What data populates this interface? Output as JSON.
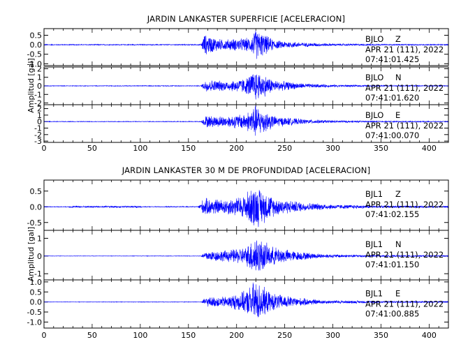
{
  "chart_data": [
    {
      "type": "seismogram",
      "title": "JARDIN LANKASTER SUPERFICIE [ACELERACION]",
      "ylabel": "Amplitud [gal]",
      "xlim": [
        0,
        420
      ],
      "x_ticks": [
        0,
        50,
        100,
        150,
        200,
        250,
        300,
        350,
        400
      ],
      "series_color": "#0000ff",
      "traces": [
        {
          "station": "BJLO",
          "component": "Z",
          "date": "APR 21 (111), 2022",
          "time": "07:41:01.425",
          "ylim": [
            -1.1,
            0.85
          ],
          "y_ticks": [
            "0.5",
            "0.0",
            "-0.5",
            "-1.0"
          ],
          "y_tick_values": [
            0.5,
            0.0,
            -0.5,
            -1.0
          ],
          "noise_amp": 0.025,
          "max_amp": 0.9,
          "envelope": [
            [
              0,
              0.025
            ],
            [
              163,
              0.03
            ],
            [
              166,
              0.6
            ],
            [
              185,
              0.3
            ],
            [
              200,
              0.35
            ],
            [
              215,
              0.4
            ],
            [
              219,
              0.9
            ],
            [
              240,
              0.25
            ],
            [
              270,
              0.12
            ],
            [
              300,
              0.07
            ],
            [
              350,
              0.04
            ],
            [
              420,
              0.03
            ]
          ]
        },
        {
          "station": "BJLO",
          "component": "N",
          "date": "APR 21 (111), 2022",
          "time": "07:41:01.620",
          "ylim": [
            -2.2,
            2.2
          ],
          "y_ticks": [
            "2",
            "1",
            "0",
            "-1",
            "-2"
          ],
          "y_tick_values": [
            2,
            1,
            0,
            -1,
            -2
          ],
          "noise_amp": 0.04,
          "max_amp": 2.0,
          "envelope": [
            [
              0,
              0.04
            ],
            [
              163,
              0.05
            ],
            [
              168,
              0.8
            ],
            [
              190,
              0.6
            ],
            [
              210,
              1.0
            ],
            [
              219,
              2.0
            ],
            [
              240,
              0.7
            ],
            [
              270,
              0.3
            ],
            [
              300,
              0.15
            ],
            [
              350,
              0.08
            ],
            [
              420,
              0.05
            ]
          ]
        },
        {
          "station": "BJLO",
          "component": "E",
          "date": "APR 21 (111), 2022",
          "time": "07:41:00.070",
          "ylim": [
            -3.2,
            2.6
          ],
          "y_ticks": [
            "2",
            "1",
            "0",
            "-1",
            "-2",
            "-3"
          ],
          "y_tick_values": [
            2,
            1,
            0,
            -1,
            -2,
            -3
          ],
          "noise_amp": 0.05,
          "max_amp": 2.8,
          "envelope": [
            [
              0,
              0.05
            ],
            [
              163,
              0.06
            ],
            [
              168,
              1.0
            ],
            [
              190,
              0.9
            ],
            [
              210,
              1.4
            ],
            [
              219,
              2.8
            ],
            [
              240,
              0.9
            ],
            [
              270,
              0.4
            ],
            [
              300,
              0.2
            ],
            [
              350,
              0.1
            ],
            [
              420,
              0.06
            ]
          ]
        }
      ]
    },
    {
      "type": "seismogram",
      "title": "JARDIN LANKASTER 30 M DE PROFUNDIDAD [ACELERACION]",
      "ylabel": "Amplitud [gal]",
      "xlim": [
        0,
        420
      ],
      "x_ticks": [
        0,
        50,
        100,
        150,
        200,
        250,
        300,
        350,
        400
      ],
      "series_color": "#0000ff",
      "traces": [
        {
          "station": "BJL1",
          "component": "Z",
          "date": "APR 21 (111), 2022",
          "time": "07:41:02.155",
          "ylim": [
            -0.75,
            0.85
          ],
          "y_ticks": [
            "0.5",
            "0.0",
            "-0.5"
          ],
          "y_tick_values": [
            0.5,
            0.0,
            -0.5
          ],
          "noise_amp": 0.01,
          "max_amp": 0.7,
          "envelope": [
            [
              0,
              0.01
            ],
            [
              25,
              0.012
            ],
            [
              27,
              0.03
            ],
            [
              100,
              0.03
            ],
            [
              102,
              0.012
            ],
            [
              160,
              0.015
            ],
            [
              166,
              0.3
            ],
            [
              185,
              0.25
            ],
            [
              205,
              0.35
            ],
            [
              219,
              0.75
            ],
            [
              240,
              0.3
            ],
            [
              270,
              0.15
            ],
            [
              300,
              0.08
            ],
            [
              350,
              0.04
            ],
            [
              420,
              0.03
            ]
          ]
        },
        {
          "station": "BJL1",
          "component": "N",
          "date": "APR 21 (111), 2022",
          "time": "07:41:01.150",
          "ylim": [
            -1.35,
            1.45
          ],
          "y_ticks": [
            "1",
            "0",
            "-1"
          ],
          "y_tick_values": [
            1,
            0,
            -1
          ],
          "noise_amp": 0.01,
          "max_amp": 1.3,
          "envelope": [
            [
              0,
              0.01
            ],
            [
              163,
              0.015
            ],
            [
              168,
              0.3
            ],
            [
              190,
              0.35
            ],
            [
              210,
              0.55
            ],
            [
              219,
              1.3
            ],
            [
              235,
              0.6
            ],
            [
              260,
              0.3
            ],
            [
              290,
              0.12
            ],
            [
              350,
              0.05
            ],
            [
              420,
              0.03
            ]
          ]
        },
        {
          "station": "BJL1",
          "component": "E",
          "date": "APR 21 (111), 2022",
          "time": "07:41:00.885",
          "ylim": [
            -1.3,
            1.1
          ],
          "y_ticks": [
            "1.0",
            "0.5",
            "0.0",
            "-0.5",
            "-1.0"
          ],
          "y_tick_values": [
            1.0,
            0.5,
            0.0,
            -0.5,
            -1.0
          ],
          "noise_amp": 0.01,
          "max_amp": 1.2,
          "envelope": [
            [
              0,
              0.01
            ],
            [
              163,
              0.015
            ],
            [
              168,
              0.25
            ],
            [
              190,
              0.3
            ],
            [
              210,
              0.6
            ],
            [
              219,
              1.2
            ],
            [
              235,
              0.5
            ],
            [
              260,
              0.25
            ],
            [
              290,
              0.1
            ],
            [
              350,
              0.05
            ],
            [
              420,
              0.03
            ]
          ]
        }
      ]
    }
  ]
}
